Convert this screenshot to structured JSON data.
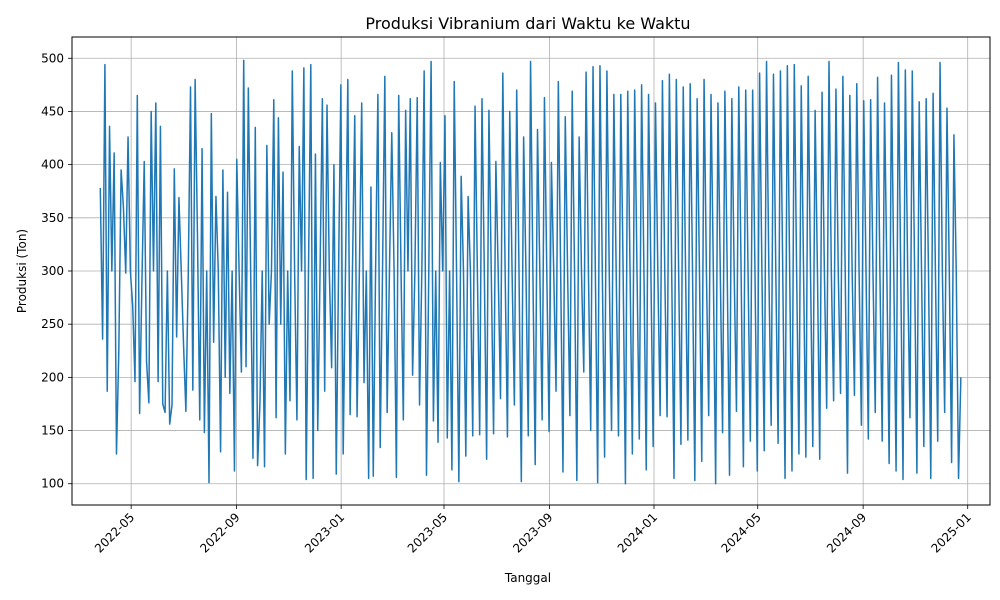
{
  "chart_data": {
    "type": "line",
    "title": "Produksi Vibranium dari Waktu ke Waktu",
    "xlabel": "Tanggal",
    "ylabel": "Produksi (Ton)",
    "x_range": [
      "2022-03-26",
      "2024-12-24"
    ],
    "xlim": [
      "2022-02-21",
      "2025-01-27"
    ],
    "ylim": [
      80,
      520
    ],
    "x_ticks": [
      "2022-05",
      "2022-09",
      "2023-01",
      "2023-05",
      "2023-09",
      "2024-01",
      "2024-05",
      "2024-09",
      "2025-01"
    ],
    "y_ticks": [
      100,
      150,
      200,
      250,
      300,
      350,
      400,
      450,
      500
    ],
    "grid": true,
    "legend": "none",
    "series_color": "#1f77b4",
    "series": [
      {
        "values": [
          378,
          236,
          494,
          187,
          436,
          300,
          411,
          128,
          224,
          395,
          360,
          298,
          426,
          300,
          268,
          196,
          465,
          166,
          290,
          403,
          215,
          176,
          450,
          300,
          458,
          196,
          436,
          175,
          167,
          300,
          156,
          174,
          396,
          238,
          369,
          300,
          230,
          168,
          292,
          473,
          188,
          480,
          335,
          160,
          415,
          148,
          300,
          101,
          448,
          233,
          370,
          300,
          130,
          395,
          200,
          374,
          185,
          300,
          112,
          405,
          300,
          205,
          498,
          210,
          472,
          300,
          124,
          435,
          117,
          175,
          300,
          116,
          418,
          250,
          300,
          461,
          162,
          444,
          250,
          393,
          128,
          300,
          178,
          488,
          300,
          160,
          417,
          300,
          491,
          104,
          300,
          494,
          105,
          410,
          150,
          300,
          462,
          187,
          456,
          300,
          209,
          400,
          109,
          300,
          475,
          128,
          300,
          480,
          165,
          300,
          446,
          163,
          300,
          458,
          195,
          300,
          105,
          379,
          107,
          300,
          466,
          134,
          300,
          483,
          167,
          300,
          430,
          300,
          106,
          465,
          300,
          160,
          451,
          300,
          462,
          202,
          300,
          463,
          174,
          300,
          488,
          108,
          300,
          497,
          159,
          300,
          139,
          402,
          300,
          446,
          143,
          300,
          113,
          478,
          300,
          102,
          389,
          300,
          126,
          370,
          300,
          145,
          455,
          300,
          146,
          462,
          300,
          123,
          451,
          300,
          147,
          403,
          300,
          180,
          486,
          300,
          144,
          450,
          300,
          174,
          470,
          300,
          102,
          426,
          300,
          145,
          497,
          300,
          118,
          433,
          300,
          160,
          463,
          300,
          149,
          402,
          300,
          187,
          478,
          300,
          111,
          445,
          300,
          164,
          469,
          300,
          103,
          426,
          300,
          205,
          487,
          300,
          150,
          492,
          300,
          101,
          493,
          300,
          125,
          488,
          300,
          150,
          466,
          300,
          145,
          466,
          300,
          100,
          469,
          300,
          128,
          470,
          300,
          142,
          475,
          300,
          113,
          466,
          300,
          135,
          458,
          300,
          164,
          479,
          300,
          163,
          485,
          300,
          105,
          480,
          300,
          137,
          473,
          300,
          141,
          476,
          300,
          103,
          462,
          300,
          121,
          480,
          300,
          164,
          466,
          300,
          100,
          458,
          300,
          148,
          469,
          300,
          108,
          462,
          300,
          168,
          473,
          300,
          116,
          470,
          300,
          140,
          470,
          300,
          112,
          486,
          300,
          131,
          497,
          300,
          155,
          485,
          300,
          138,
          488,
          300,
          105,
          493,
          300,
          112,
          494,
          300,
          128,
          474,
          300,
          125,
          483,
          300,
          135,
          451,
          300,
          123,
          468,
          300,
          171,
          497,
          300,
          178,
          471,
          300,
          185,
          483,
          300,
          110,
          465,
          300,
          183,
          476,
          300,
          155,
          460,
          300,
          142,
          461,
          300,
          167,
          482,
          300,
          140,
          458,
          300,
          119,
          484,
          300,
          112,
          496,
          300,
          104,
          489,
          300,
          162,
          488,
          300,
          110,
          459,
          300,
          135,
          462,
          300,
          105,
          467,
          300,
          140,
          496,
          300,
          167,
          453,
          300,
          120,
          428,
          300,
          105,
          200
        ]
      }
    ]
  }
}
